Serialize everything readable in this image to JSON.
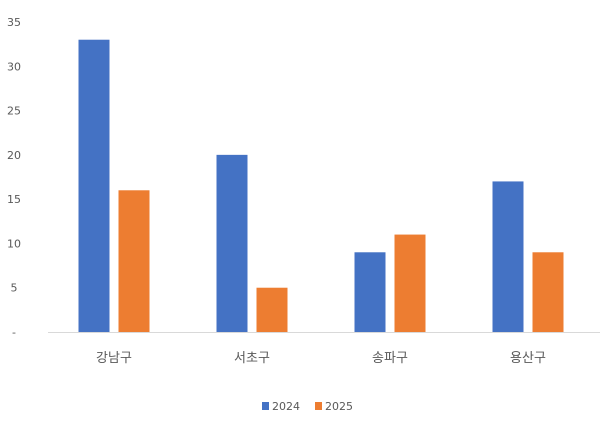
{
  "chart_data": {
    "type": "bar",
    "title": "",
    "xlabel": "",
    "ylabel": "",
    "categories": [
      "강남구",
      "서초구",
      "송파구",
      "용산구"
    ],
    "series": [
      {
        "name": "2024",
        "values": [
          33,
          20,
          9,
          17
        ],
        "color": "#4472C4"
      },
      {
        "name": "2025",
        "values": [
          16,
          5,
          11,
          9
        ],
        "color": "#ED7D31"
      }
    ],
    "ylim": [
      0,
      35
    ],
    "yticks": [
      0,
      5,
      10,
      15,
      20,
      25,
      30,
      35
    ],
    "ytick_labels": [
      "-",
      "5",
      "10",
      "15",
      "20",
      "25",
      "30",
      "35"
    ],
    "grid": false,
    "legend_position": "bottom"
  }
}
